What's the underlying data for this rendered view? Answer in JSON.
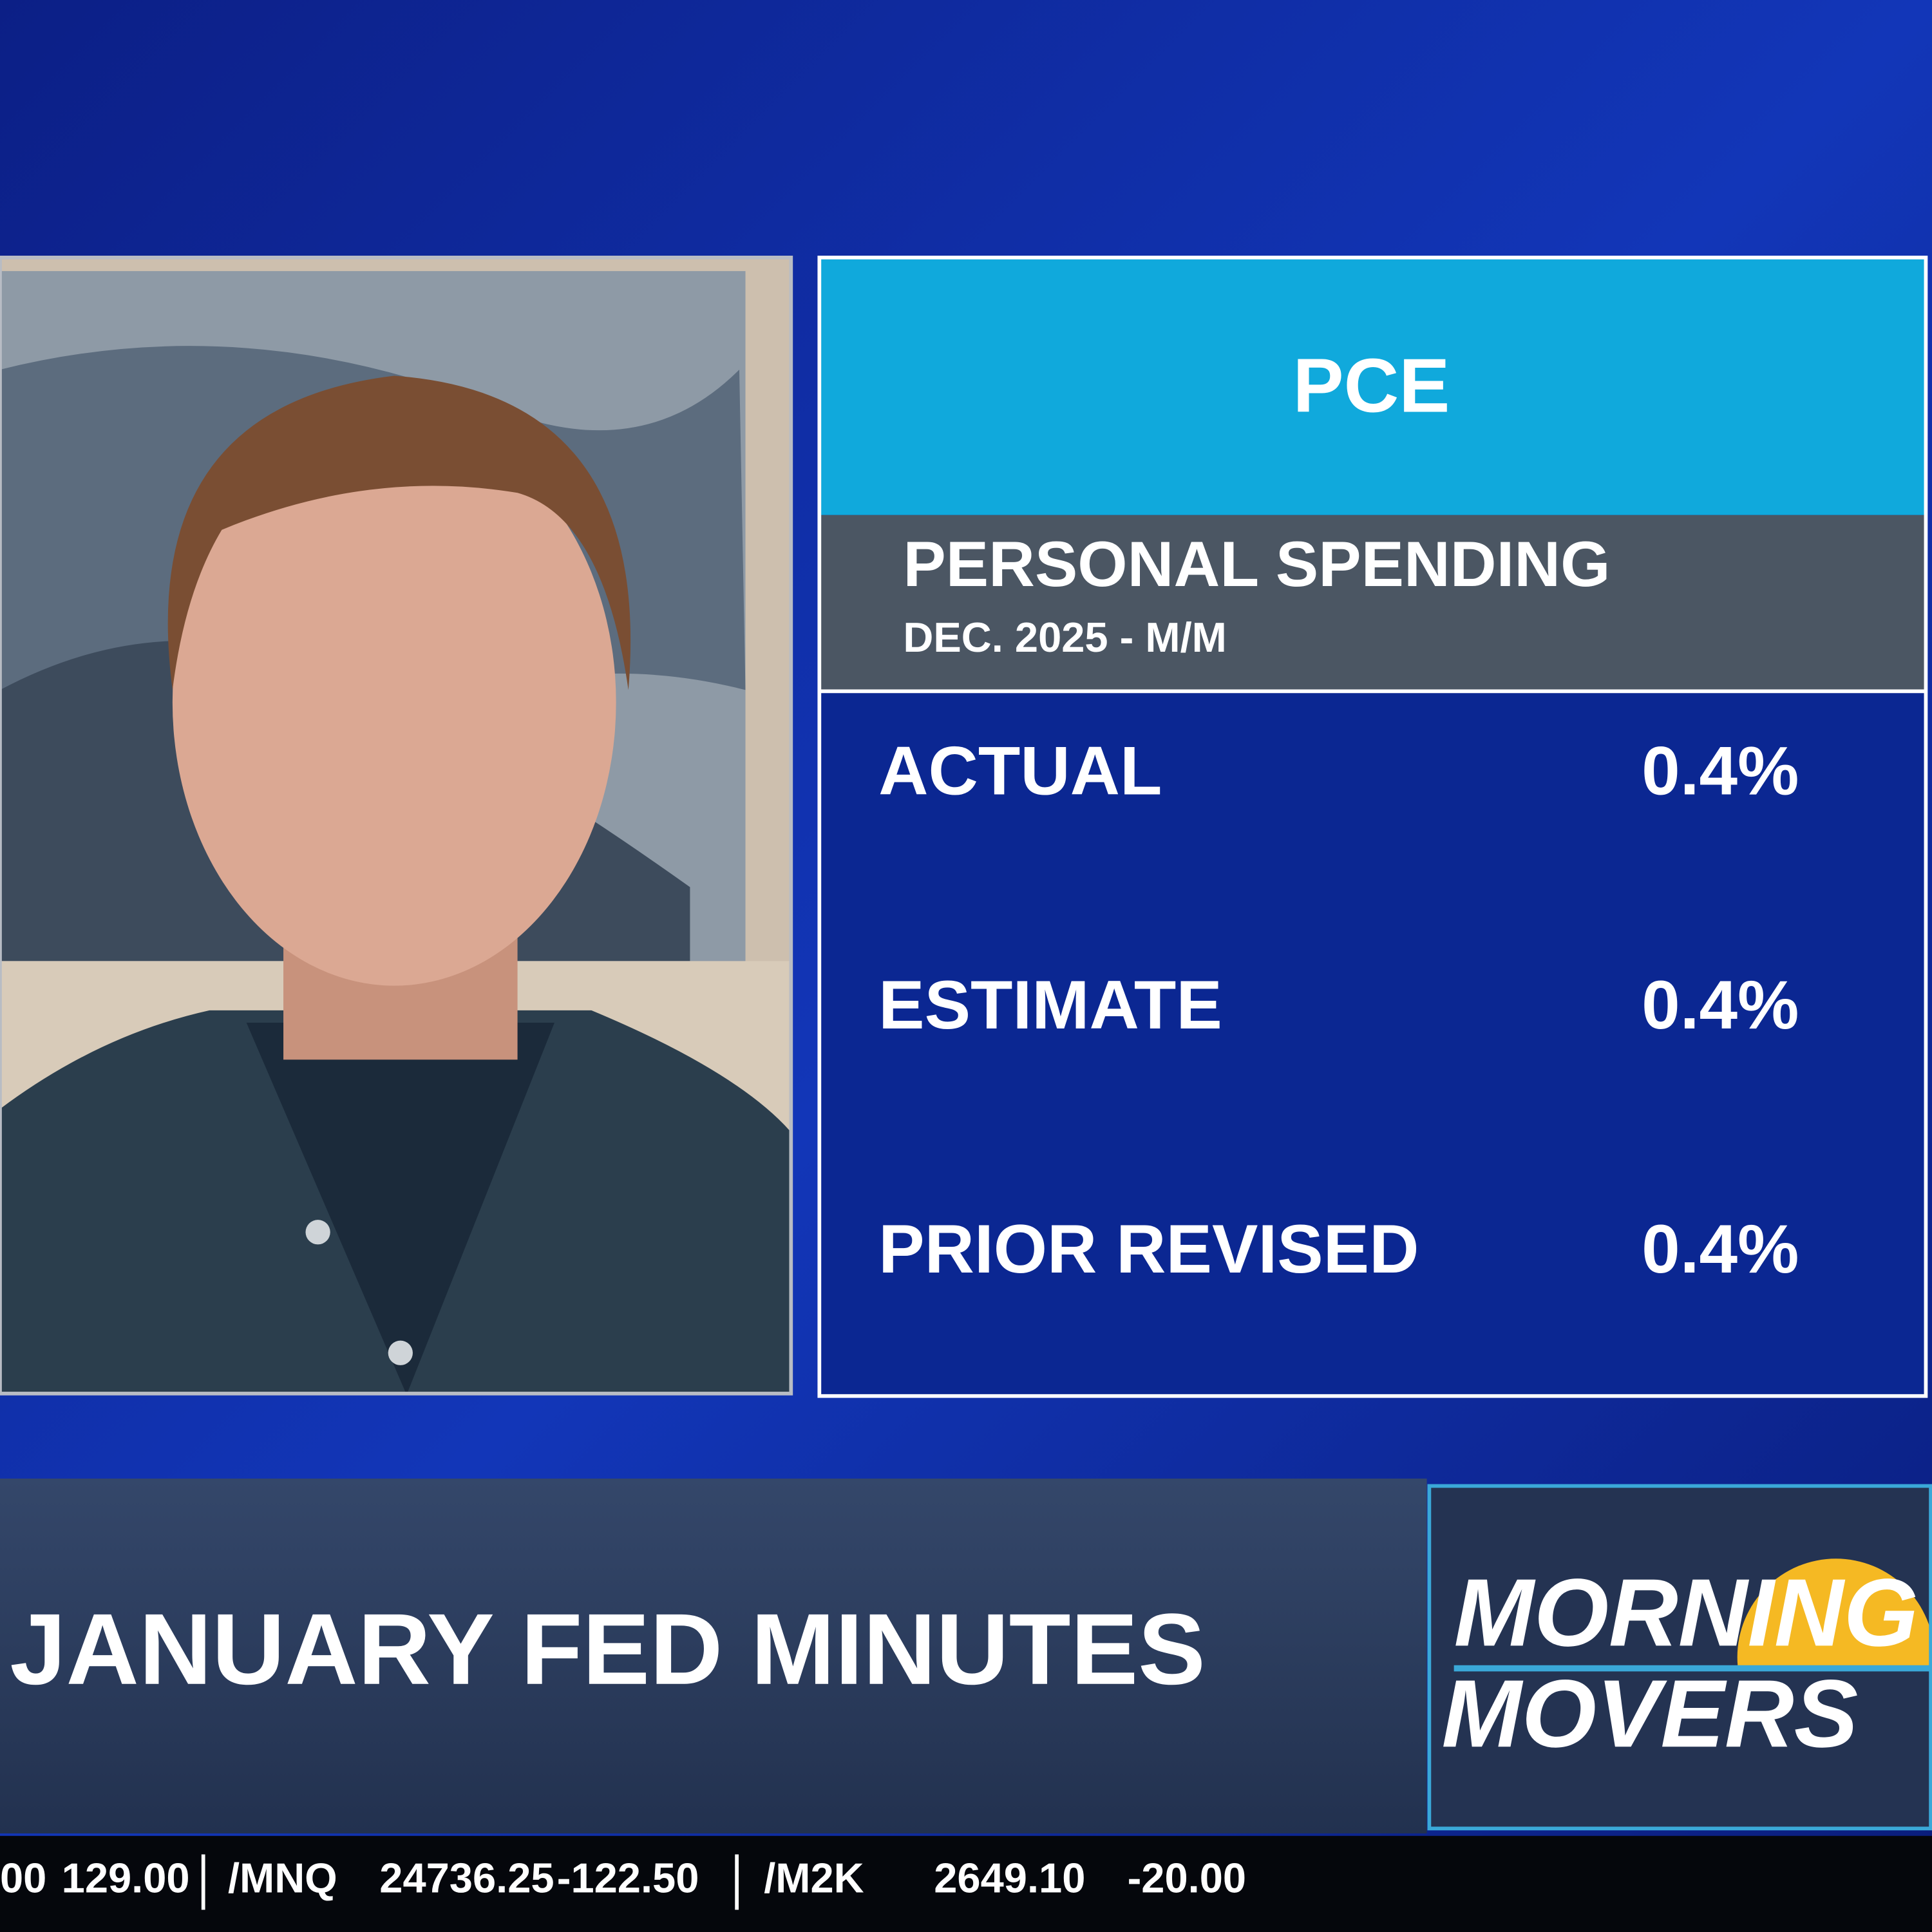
{
  "panel": {
    "title": "PCE",
    "subtitle": "PERSONAL SPENDING",
    "period": "DEC. 2025 - M/M",
    "rows": [
      {
        "label": "ACTUAL",
        "value": "0.4%"
      },
      {
        "label": "ESTIMATE",
        "value": "0.4%"
      },
      {
        "label": "PRIOR REVISED",
        "value": "0.4%"
      }
    ]
  },
  "lower_third": {
    "headline": "JANUARY FED MINUTES",
    "logo": {
      "line1": "MORNING",
      "line2": "MOVERS"
    }
  },
  "ticker": [
    {
      "price": "00",
      "change": "129.00"
    },
    {
      "symbol": "/MNQ",
      "price": "24736.25",
      "change": "-122.50"
    },
    {
      "symbol": "/M2K",
      "price": "2649.10",
      "change": "-20.00"
    }
  ]
}
